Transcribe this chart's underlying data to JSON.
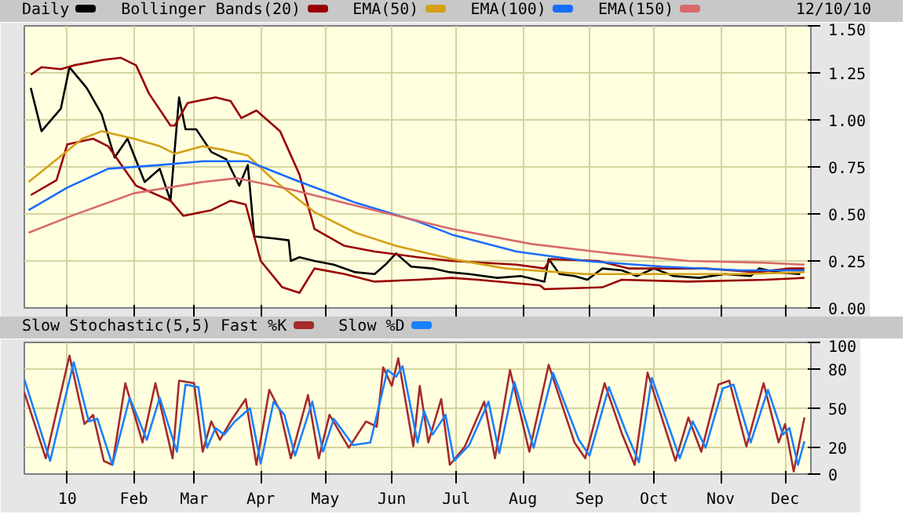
{
  "chart_data": [
    {
      "type": "line",
      "annotations": [
        "12/10/10"
      ],
      "legend": "top left",
      "grid": true,
      "tick_labels": "y",
      "xlim": [
        "2009-12-12",
        "2010-12-13"
      ],
      "ylim": [
        0,
        1.5
      ],
      "xticks": [
        {
          "value": "2010-01-01",
          "label": null
        },
        {
          "value": "2010-02-01",
          "label": null
        },
        {
          "value": "2010-03-01",
          "label": null
        },
        {
          "value": "2010-04-01",
          "label": null
        },
        {
          "value": "2010-05-01",
          "label": null
        },
        {
          "value": "2010-06-01",
          "label": null
        },
        {
          "value": "2010-07-01",
          "label": null
        },
        {
          "value": "2010-08-01",
          "label": null
        },
        {
          "value": "2010-09-01",
          "label": null
        },
        {
          "value": "2010-10-01",
          "label": null
        },
        {
          "value": "2010-11-01",
          "label": null
        },
        {
          "value": "2010-12-01",
          "label": null
        }
      ],
      "yticks": [
        {
          "value": 0,
          "label": "0.00"
        },
        {
          "value": 0.25,
          "label": "0.25"
        },
        {
          "value": 0.5,
          "label": "0.50"
        },
        {
          "value": 0.75,
          "label": "0.75"
        },
        {
          "value": 1,
          "label": "1.00"
        },
        {
          "value": 1.25,
          "label": "1.25"
        },
        {
          "value": 1.5,
          "label": "1.50"
        }
      ],
      "series": [
        {
          "name": "Daily",
          "color": "#000000",
          "x": [
            "2009-12-15",
            "2009-12-20",
            "2009-12-29",
            "2010-01-02",
            "2010-01-10",
            "2010-01-17",
            "2010-01-23",
            "2010-01-29",
            "2010-02-06",
            "2010-02-13",
            "2010-02-18",
            "2010-02-22",
            "2010-02-25",
            "2010-03-02",
            "2010-03-09",
            "2010-03-16",
            "2010-03-22",
            "2010-03-26",
            "2010-03-29",
            "2010-04-07",
            "2010-04-14",
            "2010-04-15",
            "2010-04-19",
            "2010-04-26",
            "2010-05-05",
            "2010-05-15",
            "2010-05-24",
            "2010-05-29",
            "2010-06-03",
            "2010-06-10",
            "2010-06-20",
            "2010-06-28",
            "2010-07-07",
            "2010-07-20",
            "2010-07-31",
            "2010-08-11",
            "2010-08-13",
            "2010-08-18",
            "2010-08-25",
            "2010-08-31",
            "2010-09-07",
            "2010-09-16",
            "2010-09-23",
            "2010-10-01",
            "2010-10-10",
            "2010-10-22",
            "2010-11-03",
            "2010-11-15",
            "2010-11-19",
            "2010-11-27",
            "2010-12-08"
          ],
          "values": [
            1.17,
            0.94,
            1.06,
            1.28,
            1.17,
            1.03,
            0.8,
            0.9,
            0.67,
            0.74,
            0.57,
            1.12,
            0.95,
            0.95,
            0.83,
            0.79,
            0.65,
            0.76,
            0.38,
            0.37,
            0.36,
            0.25,
            0.27,
            0.25,
            0.23,
            0.19,
            0.18,
            0.23,
            0.29,
            0.22,
            0.21,
            0.19,
            0.18,
            0.16,
            0.17,
            0.14,
            0.26,
            0.18,
            0.17,
            0.15,
            0.21,
            0.2,
            0.17,
            0.21,
            0.17,
            0.16,
            0.18,
            0.17,
            0.21,
            0.19,
            0.18
          ]
        },
        {
          "name": "Bollinger Bands(20)",
          "color": "#990000",
          "x": [
            "2009-12-15",
            "2009-12-20",
            "2009-12-29",
            "2010-01-04",
            "2010-01-18",
            "2010-01-26",
            "2010-02-02",
            "2010-02-08",
            "2010-02-18",
            "2010-02-20",
            "2010-02-26",
            "2010-03-11",
            "2010-03-18",
            "2010-03-23",
            "2010-03-30",
            "2010-04-10",
            "2010-04-19",
            "2010-04-26",
            "2010-05-10",
            "2010-05-24",
            "2010-06-13",
            "2010-06-29",
            "2010-07-29",
            "2010-08-11",
            "2010-08-14",
            "2010-09-05",
            "2010-09-19",
            "2010-10-25",
            "2010-11-18",
            "2010-12-03",
            "2010-12-10"
          ],
          "values": [
            1.24,
            1.28,
            1.27,
            1.29,
            1.32,
            1.33,
            1.29,
            1.14,
            0.97,
            0.97,
            1.09,
            1.12,
            1.1,
            1.01,
            1.05,
            0.94,
            0.71,
            0.42,
            0.33,
            0.3,
            0.27,
            0.25,
            0.23,
            0.21,
            0.26,
            0.25,
            0.21,
            0.21,
            0.19,
            0.21,
            0.21
          ]
        },
        {
          "color": "#990000",
          "x": [
            "2009-12-15",
            "2009-12-27",
            "2010-01-01",
            "2010-01-13",
            "2010-01-20",
            "2010-02-02",
            "2010-02-18",
            "2010-02-24",
            "2010-03-09",
            "2010-03-18",
            "2010-03-25",
            "2010-04-01",
            "2010-04-11",
            "2010-04-19",
            "2010-04-26",
            "2010-05-10",
            "2010-05-24",
            "2010-06-13",
            "2010-06-29",
            "2010-07-11",
            "2010-08-09",
            "2010-08-11",
            "2010-09-07",
            "2010-09-16",
            "2010-10-17",
            "2010-11-22",
            "2010-12-10"
          ],
          "values": [
            0.6,
            0.68,
            0.87,
            0.9,
            0.86,
            0.65,
            0.57,
            0.49,
            0.52,
            0.57,
            0.55,
            0.25,
            0.11,
            0.08,
            0.21,
            0.18,
            0.14,
            0.15,
            0.16,
            0.15,
            0.12,
            0.1,
            0.11,
            0.15,
            0.14,
            0.15,
            0.16
          ]
        },
        {
          "name": "EMA(50)",
          "color": "#d4a017",
          "x": [
            "2009-12-14",
            "2009-12-27",
            "2010-01-08",
            "2010-01-17",
            "2010-02-01",
            "2010-02-13",
            "2010-02-20",
            "2010-03-05",
            "2010-03-15",
            "2010-03-26",
            "2010-04-07",
            "2010-04-26",
            "2010-05-15",
            "2010-06-03",
            "2010-06-29",
            "2010-07-24",
            "2010-08-30",
            "2010-10-05",
            "2010-11-10",
            "2010-12-10"
          ],
          "values": [
            0.67,
            0.79,
            0.9,
            0.94,
            0.9,
            0.86,
            0.82,
            0.86,
            0.84,
            0.81,
            0.68,
            0.51,
            0.4,
            0.33,
            0.26,
            0.21,
            0.18,
            0.18,
            0.18,
            0.19
          ]
        },
        {
          "name": "EMA(100)",
          "color": "#1a6cff",
          "x": [
            "2009-12-14",
            "2010-01-01",
            "2010-01-20",
            "2010-02-13",
            "2010-03-05",
            "2010-03-26",
            "2010-04-17",
            "2010-05-15",
            "2010-06-13",
            "2010-06-29",
            "2010-07-29",
            "2010-08-30",
            "2010-10-05",
            "2010-11-10",
            "2010-12-10"
          ],
          "values": [
            0.52,
            0.64,
            0.74,
            0.76,
            0.78,
            0.78,
            0.68,
            0.56,
            0.46,
            0.39,
            0.3,
            0.25,
            0.22,
            0.2,
            0.2
          ]
        },
        {
          "name": "EMA(150)",
          "color": "#d86a6a",
          "x": [
            "2009-12-14",
            "2010-01-03",
            "2010-02-01",
            "2010-03-05",
            "2010-03-21",
            "2010-04-15",
            "2010-05-20",
            "2010-06-29",
            "2010-08-05",
            "2010-09-11",
            "2010-10-17",
            "2010-11-22",
            "2010-12-10"
          ],
          "values": [
            0.4,
            0.49,
            0.61,
            0.67,
            0.69,
            0.63,
            0.53,
            0.42,
            0.34,
            0.29,
            0.25,
            0.24,
            0.23
          ]
        }
      ]
    },
    {
      "type": "line",
      "title": "Slow Stochastic(5,5)",
      "legend": "top left",
      "grid": true,
      "xlim": [
        "2009-12-12",
        "2010-12-13"
      ],
      "ylim": [
        0,
        100
      ],
      "xticks": [
        {
          "value": "2010-01-01",
          "label": "10"
        },
        {
          "value": "2010-02-01",
          "label": "Feb"
        },
        {
          "value": "2010-03-01",
          "label": "Mar"
        },
        {
          "value": "2010-04-01",
          "label": "Apr"
        },
        {
          "value": "2010-05-01",
          "label": "May"
        },
        {
          "value": "2010-06-01",
          "label": "Jun"
        },
        {
          "value": "2010-07-01",
          "label": "Jul"
        },
        {
          "value": "2010-08-01",
          "label": "Aug"
        },
        {
          "value": "2010-09-01",
          "label": "Sep"
        },
        {
          "value": "2010-10-01",
          "label": "Oct"
        },
        {
          "value": "2010-11-01",
          "label": "Nov"
        },
        {
          "value": "2010-12-01",
          "label": "Dec"
        }
      ],
      "yticks": [
        0,
        20,
        50,
        80,
        100
      ],
      "series": [
        {
          "name": "Fast %K",
          "color": "#a52a2a",
          "x": [
            "2009-12-12",
            "2009-12-22",
            "2010-01-02",
            "2010-01-09",
            "2010-01-13",
            "2010-01-18",
            "2010-01-22",
            "2010-01-28",
            "2010-02-05",
            "2010-02-11",
            "2010-02-19",
            "2010-02-22",
            "2010-03-01",
            "2010-03-05",
            "2010-03-09",
            "2010-03-13",
            "2010-03-18",
            "2010-03-25",
            "2010-03-30",
            "2010-04-05",
            "2010-04-10",
            "2010-04-15",
            "2010-04-23",
            "2010-04-28",
            "2010-05-03",
            "2010-05-12",
            "2010-05-20",
            "2010-05-25",
            "2010-05-28",
            "2010-06-01",
            "2010-06-04",
            "2010-06-11",
            "2010-06-14",
            "2010-06-18",
            "2010-06-24",
            "2010-06-28",
            "2010-07-05",
            "2010-07-14",
            "2010-07-19",
            "2010-07-26",
            "2010-08-04",
            "2010-08-13",
            "2010-08-25",
            "2010-08-30",
            "2010-09-08",
            "2010-09-16",
            "2010-09-22",
            "2010-09-28",
            "2010-10-11",
            "2010-10-17",
            "2010-10-23",
            "2010-10-31",
            "2010-11-05",
            "2010-11-13",
            "2010-11-21",
            "2010-11-28",
            "2010-12-01",
            "2010-12-05",
            "2010-12-10"
          ],
          "values": [
            62,
            12,
            90,
            38,
            45,
            10,
            7,
            69,
            24,
            69,
            12,
            71,
            69,
            17,
            40,
            26,
            40,
            57,
            7,
            64,
            48,
            12,
            60,
            12,
            45,
            20,
            40,
            36,
            81,
            67,
            88,
            21,
            67,
            24,
            57,
            7,
            21,
            55,
            12,
            79,
            17,
            83,
            24,
            12,
            69,
            31,
            7,
            77,
            10,
            43,
            17,
            68,
            71,
            21,
            69,
            24,
            38,
            2,
            43
          ]
        },
        {
          "name": "Slow %D",
          "color": "#1a80ff",
          "x": [
            "2009-12-12",
            "2009-12-24",
            "2010-01-04",
            "2010-01-11",
            "2010-01-15",
            "2010-01-22",
            "2010-01-30",
            "2010-02-07",
            "2010-02-13",
            "2010-02-21",
            "2010-02-25",
            "2010-03-03",
            "2010-03-07",
            "2010-03-11",
            "2010-03-15",
            "2010-03-20",
            "2010-03-27",
            "2010-04-01",
            "2010-04-07",
            "2010-04-12",
            "2010-04-17",
            "2010-04-25",
            "2010-04-30",
            "2010-05-05",
            "2010-05-14",
            "2010-05-22",
            "2010-05-30",
            "2010-06-03",
            "2010-06-06",
            "2010-06-13",
            "2010-06-16",
            "2010-06-20",
            "2010-06-26",
            "2010-06-30",
            "2010-07-07",
            "2010-07-16",
            "2010-07-21",
            "2010-07-28",
            "2010-08-06",
            "2010-08-15",
            "2010-08-27",
            "2010-09-01",
            "2010-09-10",
            "2010-09-18",
            "2010-09-24",
            "2010-09-30",
            "2010-10-13",
            "2010-10-19",
            "2010-10-25",
            "2010-11-02",
            "2010-11-07",
            "2010-11-15",
            "2010-11-23",
            "2010-11-30",
            "2010-12-03",
            "2010-12-07",
            "2010-12-10"
          ],
          "values": [
            72,
            10,
            85,
            40,
            42,
            7,
            58,
            26,
            58,
            17,
            68,
            66,
            20,
            35,
            30,
            40,
            50,
            8,
            55,
            45,
            14,
            55,
            17,
            42,
            22,
            24,
            79,
            74,
            82,
            24,
            48,
            30,
            45,
            10,
            22,
            55,
            16,
            70,
            20,
            77,
            26,
            14,
            66,
            32,
            9,
            73,
            12,
            40,
            20,
            65,
            68,
            24,
            64,
            30,
            35,
            7,
            25
          ]
        }
      ]
    }
  ]
}
